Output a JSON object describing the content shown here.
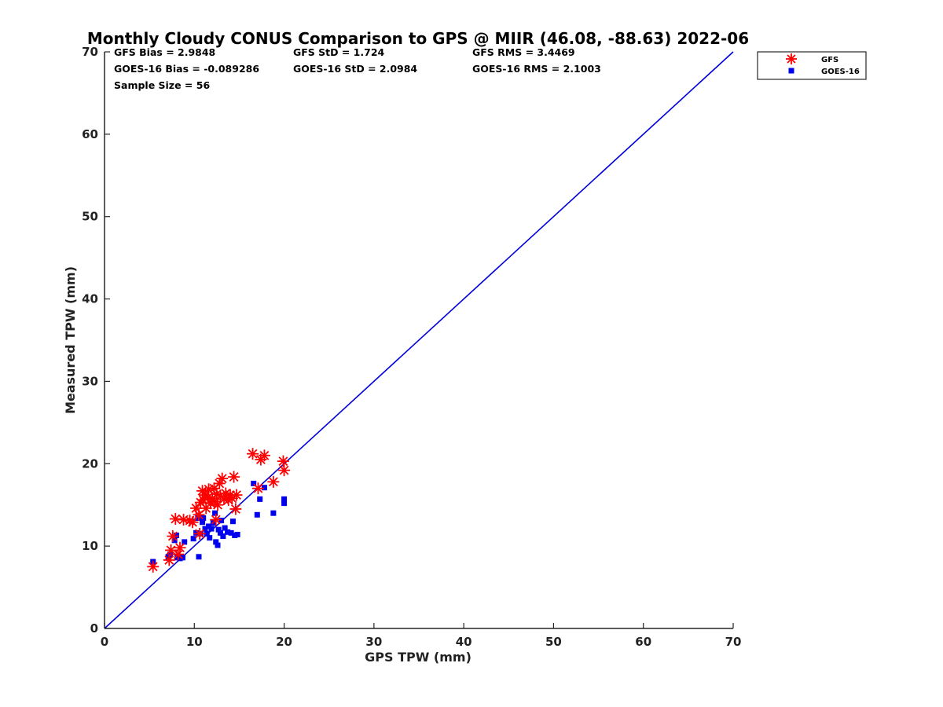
{
  "chart_data": {
    "type": "scatter",
    "title": "Monthly Cloudy CONUS Comparison to GPS @ MIIR (46.08, -88.63) 2022-06",
    "xlabel": "GPS TPW (mm)",
    "ylabel": "Measured TPW (mm)",
    "xlim": [
      0,
      70
    ],
    "ylim": [
      0,
      70
    ],
    "xticks": [
      0,
      10,
      20,
      30,
      40,
      50,
      60,
      70
    ],
    "yticks": [
      0,
      10,
      20,
      30,
      40,
      50,
      60,
      70
    ],
    "grid": false,
    "legend_position": "top-right",
    "stats": [
      "GFS Bias = 2.9848",
      "GFS StD = 1.724",
      "GFS RMS = 3.4469",
      "GOES-16 Bias = -0.089286",
      "GOES-16 StD = 2.0984",
      "GOES-16 RMS = 2.1003",
      "Sample Size = 56"
    ],
    "reference_line": {
      "x": [
        0,
        70
      ],
      "y": [
        0,
        70
      ],
      "color": "#0000dd"
    },
    "series": [
      {
        "name": "GFS",
        "marker": "asterisk",
        "color": "#ff0000",
        "points": [
          [
            5.4,
            7.5
          ],
          [
            7.2,
            8.3
          ],
          [
            7.4,
            9.5
          ],
          [
            7.6,
            11.2
          ],
          [
            8.2,
            9.0
          ],
          [
            8.4,
            9.8
          ],
          [
            7.9,
            13.3
          ],
          [
            8.8,
            13.2
          ],
          [
            9.5,
            13.1
          ],
          [
            9.8,
            12.9
          ],
          [
            10.2,
            14.6
          ],
          [
            10.5,
            13.8
          ],
          [
            10.7,
            15.3
          ],
          [
            10.9,
            16.7
          ],
          [
            11.0,
            15.6
          ],
          [
            11.2,
            16.2
          ],
          [
            11.3,
            14.6
          ],
          [
            11.5,
            15.9
          ],
          [
            11.6,
            16.9
          ],
          [
            11.8,
            15.2
          ],
          [
            12.0,
            15.8
          ],
          [
            12.2,
            17.0
          ],
          [
            12.3,
            15.4
          ],
          [
            12.5,
            16.3
          ],
          [
            12.6,
            15.0
          ],
          [
            12.8,
            17.6
          ],
          [
            12.9,
            16.1
          ],
          [
            13.1,
            18.2
          ],
          [
            13.3,
            15.7
          ],
          [
            13.5,
            16.4
          ],
          [
            13.8,
            15.6
          ],
          [
            14.0,
            16.2
          ],
          [
            14.2,
            15.8
          ],
          [
            14.4,
            18.4
          ],
          [
            14.6,
            14.5
          ],
          [
            14.7,
            16.2
          ],
          [
            10.6,
            11.5
          ],
          [
            12.4,
            13.2
          ],
          [
            16.5,
            21.2
          ],
          [
            17.1,
            17.0
          ],
          [
            17.4,
            20.5
          ],
          [
            17.8,
            21.0
          ],
          [
            18.8,
            17.8
          ],
          [
            19.9,
            20.3
          ],
          [
            20.0,
            19.2
          ]
        ]
      },
      {
        "name": "GOES-16",
        "marker": "square",
        "color": "#0000ee",
        "points": [
          [
            5.4,
            8.1
          ],
          [
            7.1,
            8.7
          ],
          [
            7.3,
            9.0
          ],
          [
            7.8,
            10.7
          ],
          [
            8.0,
            11.3
          ],
          [
            8.1,
            8.6
          ],
          [
            8.4,
            8.5
          ],
          [
            8.7,
            8.6
          ],
          [
            8.9,
            10.5
          ],
          [
            9.7,
            13.0
          ],
          [
            9.9,
            10.9
          ],
          [
            10.2,
            11.6
          ],
          [
            10.4,
            13.4
          ],
          [
            10.5,
            8.7
          ],
          [
            10.7,
            11.5
          ],
          [
            10.9,
            12.9
          ],
          [
            11.0,
            13.4
          ],
          [
            11.2,
            12.1
          ],
          [
            11.4,
            11.5
          ],
          [
            11.6,
            12.4
          ],
          [
            11.7,
            11.0
          ],
          [
            11.9,
            12.1
          ],
          [
            12.1,
            12.8
          ],
          [
            12.3,
            14.0
          ],
          [
            12.4,
            10.5
          ],
          [
            12.6,
            10.1
          ],
          [
            12.7,
            12.0
          ],
          [
            12.9,
            11.6
          ],
          [
            13.0,
            13.1
          ],
          [
            13.2,
            11.2
          ],
          [
            13.4,
            12.2
          ],
          [
            13.7,
            11.7
          ],
          [
            14.1,
            11.6
          ],
          [
            14.3,
            13.0
          ],
          [
            14.5,
            11.3
          ],
          [
            14.8,
            11.4
          ],
          [
            16.6,
            17.6
          ],
          [
            17.0,
            13.8
          ],
          [
            17.3,
            15.7
          ],
          [
            17.8,
            17.1
          ],
          [
            18.8,
            14.0
          ],
          [
            20.0,
            15.2
          ],
          [
            20.0,
            15.7
          ]
        ]
      }
    ]
  }
}
